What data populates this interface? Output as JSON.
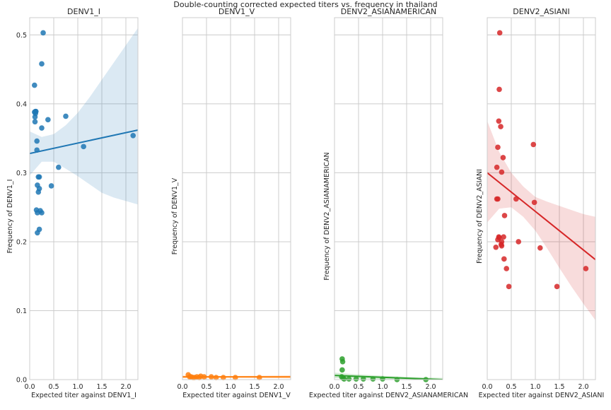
{
  "figure": {
    "suptitle": "Double-counting corrected expected titers vs. frequency in thailand"
  },
  "chart_data": [
    {
      "type": "scatter",
      "title": "DENV1_I",
      "xlabel": "Expected titer against DENV1_I",
      "ylabel": "Frequency of DENV1_I",
      "color": "#1f77b4",
      "xlim": [
        0,
        2.25
      ],
      "ylim": [
        0,
        0.525
      ],
      "xticks": [
        "0.0",
        "0.5",
        "1.0",
        "1.5",
        "2.0"
      ],
      "yticks": [
        "0.0",
        "0.1",
        "0.2",
        "0.3",
        "0.4",
        "0.5"
      ],
      "show_yticks": true,
      "grid": true,
      "x": [
        0.28,
        0.25,
        0.1,
        0.12,
        0.1,
        0.13,
        0.11,
        0.11,
        0.12,
        0.38,
        0.75,
        0.25,
        0.15,
        0.15,
        1.12,
        2.15,
        0.6,
        0.18,
        0.2,
        0.16,
        0.45,
        0.2,
        0.18,
        0.14,
        0.16,
        0.22,
        0.25,
        0.2,
        0.16
      ],
      "y": [
        0.503,
        0.458,
        0.427,
        0.389,
        0.388,
        0.389,
        0.381,
        0.374,
        0.386,
        0.377,
        0.382,
        0.365,
        0.346,
        0.333,
        0.338,
        0.354,
        0.308,
        0.294,
        0.294,
        0.282,
        0.281,
        0.277,
        0.272,
        0.246,
        0.242,
        0.245,
        0.242,
        0.218,
        0.213
      ],
      "fit": {
        "x0": 0,
        "x1": 2.25,
        "y0": 0.328,
        "y1": 0.362
      },
      "ci": {
        "x": [
          0,
          0.25,
          0.5,
          0.75,
          1.0,
          1.25,
          1.5,
          1.75,
          2.0,
          2.25
        ],
        "upper": [
          0.36,
          0.352,
          0.356,
          0.369,
          0.387,
          0.41,
          0.435,
          0.46,
          0.485,
          0.51
        ],
        "lower": [
          0.296,
          0.316,
          0.316,
          0.306,
          0.295,
          0.283,
          0.271,
          0.264,
          0.259,
          0.254
        ]
      }
    },
    {
      "type": "scatter",
      "title": "DENV1_V",
      "xlabel": "Expected titer against DENV1_V",
      "ylabel": "Frequency of DENV1_V",
      "color": "#ff7f0e",
      "xlim": [
        0,
        2.25
      ],
      "ylim": [
        0,
        0.525
      ],
      "xticks": [
        "0.0",
        "0.5",
        "1.0",
        "1.5",
        "2.0"
      ],
      "yticks": [
        "0.0",
        "0.1",
        "0.2",
        "0.3",
        "0.4",
        "0.5"
      ],
      "show_yticks": false,
      "grid": true,
      "x": [
        0.12,
        0.15,
        0.18,
        0.22,
        0.25,
        0.3,
        0.35,
        0.38,
        0.45,
        0.6,
        0.7,
        0.85,
        1.1,
        1.6
      ],
      "y": [
        0.007,
        0.004,
        0.004,
        0.003,
        0.003,
        0.004,
        0.003,
        0.005,
        0.004,
        0.004,
        0.003,
        0.003,
        0.003,
        0.003
      ],
      "fit": {
        "x0": 0,
        "x1": 2.25,
        "y0": 0.004,
        "y1": 0.004
      },
      "ci": {
        "x": [
          0,
          0.5,
          1.0,
          1.5,
          2.0,
          2.25
        ],
        "upper": [
          0.006,
          0.0055,
          0.0052,
          0.0055,
          0.006,
          0.0063
        ],
        "lower": [
          0.002,
          0.0025,
          0.0028,
          0.0025,
          0.002,
          0.0017
        ]
      }
    },
    {
      "type": "scatter",
      "title": "DENV2_ASIANAMERICAN",
      "xlabel": "Expected titer against DENV2_ASIANAMERICAN",
      "ylabel": "Frequency of DENV2_ASIANAMERICAN",
      "color": "#2ca02c",
      "xlim": [
        0,
        2.25
      ],
      "ylim": [
        0,
        0.525
      ],
      "xticks": [
        "0.0",
        "0.5",
        "1.0",
        "1.5",
        "2.0"
      ],
      "yticks": [
        "0.0",
        "0.1",
        "0.2",
        "0.3",
        "0.4",
        "0.5"
      ],
      "show_yticks": false,
      "grid": true,
      "x": [
        0.16,
        0.17,
        0.16,
        0.15,
        0.18,
        0.2,
        0.3,
        0.45,
        0.6,
        0.8,
        1.0,
        1.3,
        1.9
      ],
      "y": [
        0.03,
        0.026,
        0.014,
        0.004,
        0.002,
        0.001,
        0.001,
        0.001,
        0.001,
        0.001,
        0.001,
        0.0,
        0.0
      ],
      "fit": {
        "x0": 0,
        "x1": 2.25,
        "y0": 0.006,
        "y1": 0.0
      },
      "ci": {
        "x": [
          0,
          0.5,
          1.0,
          1.5,
          2.0,
          2.25
        ],
        "upper": [
          0.01,
          0.0075,
          0.0055,
          0.004,
          0.003,
          0.0025
        ],
        "lower": [
          0.002,
          0.0015,
          0.0005,
          -0.0015,
          -0.004,
          -0.005
        ]
      }
    },
    {
      "type": "scatter",
      "title": "DENV2_ASIANI",
      "xlabel": "Expected titer against DENV2_ASIANI",
      "ylabel": "Frequency of DENV2_ASIANI",
      "color": "#d62728",
      "xlim": [
        0,
        2.25
      ],
      "ylim": [
        0,
        0.525
      ],
      "xticks": [
        "0.0",
        "0.5",
        "1.0",
        "1.5",
        "2.0"
      ],
      "yticks": [
        "0.0",
        "0.1",
        "0.2",
        "0.3",
        "0.4",
        "0.5"
      ],
      "show_yticks": false,
      "grid": true,
      "x": [
        0.26,
        0.25,
        0.24,
        0.28,
        0.22,
        0.33,
        0.2,
        0.3,
        0.22,
        0.36,
        0.24,
        0.34,
        0.22,
        0.3,
        0.29,
        0.96,
        0.6,
        0.2,
        0.25,
        0.3,
        0.65,
        0.98,
        1.1,
        0.35,
        0.4,
        0.45,
        1.45,
        2.05,
        0.18
      ],
      "y": [
        0.503,
        0.421,
        0.375,
        0.367,
        0.337,
        0.322,
        0.308,
        0.301,
        0.262,
        0.238,
        0.207,
        0.207,
        0.203,
        0.2,
        0.196,
        0.341,
        0.262,
        0.262,
        0.206,
        0.194,
        0.2,
        0.257,
        0.191,
        0.175,
        0.161,
        0.135,
        0.135,
        0.161,
        0.192
      ],
      "fit": {
        "x0": 0,
        "x1": 2.25,
        "y0": 0.3,
        "y1": 0.174
      },
      "ci": {
        "x": [
          0,
          0.25,
          0.5,
          0.75,
          1.0,
          1.25,
          1.5,
          1.75,
          2.0,
          2.25
        ],
        "upper": [
          0.375,
          0.33,
          0.3,
          0.28,
          0.265,
          0.258,
          0.252,
          0.246,
          0.24,
          0.236
        ],
        "lower": [
          0.228,
          0.248,
          0.25,
          0.236,
          0.216,
          0.19,
          0.162,
          0.135,
          0.11,
          0.086
        ]
      }
    }
  ]
}
